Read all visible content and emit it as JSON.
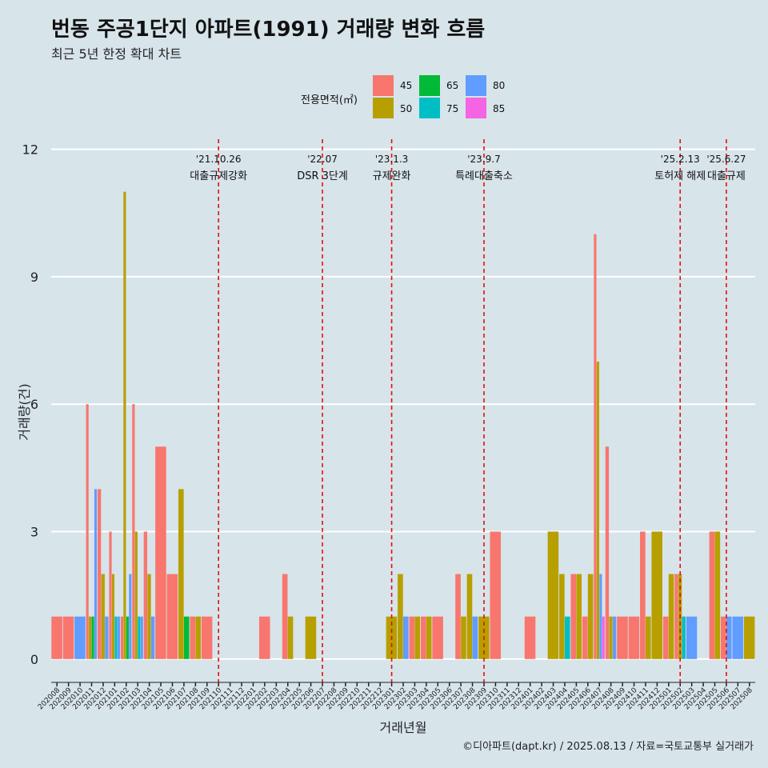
{
  "title": "번동 주공1단지 아파트(1991) 거래량 변화 흐름",
  "subtitle": "최근 5년 한정 확대 차트",
  "caption": "©디아파트(dapt.kr) / 2025.08.13 / 자료=국토교통부 실거래가",
  "colors": {
    "background": "#d7e4ea",
    "grid": "#ffffff",
    "vline": "#e01010"
  },
  "chart_data": {
    "type": "bar",
    "title": "번동 주공1단지 아파트(1991) 거래량 변화 흐름",
    "xlabel": "거래년월",
    "ylabel": "거래량(건)",
    "ylim": [
      -0.55,
      12.35
    ],
    "yticks": [
      0,
      3,
      6,
      9,
      12
    ],
    "legend": {
      "title": "전용면적(㎡)",
      "position": "top",
      "entries": [
        {
          "name": "45",
          "color": "#f8766d"
        },
        {
          "name": "50",
          "color": "#b79f00"
        },
        {
          "name": "65",
          "color": "#00ba38"
        },
        {
          "name": "75",
          "color": "#00bfc4"
        },
        {
          "name": "80",
          "color": "#619cff"
        },
        {
          "name": "85",
          "color": "#f564e3"
        }
      ]
    },
    "categories": [
      "202008",
      "202009",
      "202010",
      "202011",
      "202012",
      "202101",
      "202102",
      "202103",
      "202104",
      "202105",
      "202106",
      "202107",
      "202108",
      "202109",
      "202110",
      "202111",
      "202112",
      "202201",
      "202202",
      "202203",
      "202204",
      "202205",
      "202206",
      "202207",
      "202208",
      "202209",
      "202210",
      "202211",
      "202212",
      "202301",
      "202302",
      "202303",
      "202304",
      "202305",
      "202306",
      "202307",
      "202308",
      "202309",
      "202310",
      "202311",
      "202312",
      "202401",
      "202402",
      "202403",
      "202404",
      "202405",
      "202406",
      "202407",
      "202408",
      "202409",
      "202410",
      "202411",
      "202412",
      "202501",
      "202502",
      "202503",
      "202504",
      "202505",
      "202506",
      "202507",
      "202508"
    ],
    "series": [
      {
        "name": "45",
        "values": [
          1,
          1,
          0,
          6,
          4,
          3,
          1,
          6,
          3,
          5,
          2,
          0,
          1,
          1,
          0,
          0,
          0,
          0,
          1,
          0,
          2,
          0,
          0,
          0,
          0,
          0,
          0,
          0,
          0,
          0,
          0,
          1,
          1,
          1,
          0,
          2,
          0,
          0,
          3,
          0,
          0,
          1,
          0,
          0,
          0,
          2,
          1,
          10,
          5,
          1,
          1,
          3,
          0,
          1,
          2,
          0,
          0,
          3,
          1,
          0,
          0
        ]
      },
      {
        "name": "50",
        "values": [
          0,
          0,
          0,
          1,
          2,
          2,
          11,
          3,
          2,
          0,
          0,
          4,
          1,
          0,
          0,
          0,
          0,
          0,
          0,
          0,
          1,
          0,
          1,
          0,
          0,
          0,
          0,
          0,
          0,
          1,
          2,
          1,
          1,
          0,
          0,
          1,
          2,
          1,
          0,
          0,
          0,
          0,
          0,
          3,
          2,
          2,
          2,
          7,
          1,
          0,
          0,
          1,
          3,
          2,
          2,
          0,
          0,
          3,
          0,
          0,
          1
        ]
      },
      {
        "name": "65",
        "values": [
          0,
          0,
          0,
          1,
          0,
          0,
          1,
          0,
          0,
          0,
          0,
          1,
          0,
          0,
          0,
          0,
          0,
          0,
          0,
          0,
          0,
          0,
          0,
          0,
          0,
          0,
          0,
          0,
          0,
          0,
          0,
          0,
          0,
          0,
          0,
          0,
          0,
          0,
          0,
          0,
          0,
          0,
          0,
          0,
          0,
          0,
          0,
          0,
          0,
          0,
          0,
          0,
          0,
          0,
          0,
          0,
          0,
          0,
          0,
          0,
          0
        ]
      },
      {
        "name": "75",
        "values": [
          0,
          0,
          0,
          0,
          0,
          1,
          0,
          1,
          0,
          0,
          0,
          0,
          0,
          0,
          0,
          0,
          0,
          0,
          0,
          0,
          0,
          0,
          0,
          0,
          0,
          0,
          0,
          0,
          0,
          0,
          0,
          0,
          0,
          0,
          0,
          0,
          0,
          0,
          0,
          0,
          0,
          0,
          0,
          0,
          1,
          0,
          0,
          0,
          0,
          0,
          0,
          0,
          0,
          0,
          1,
          0,
          0,
          0,
          0,
          0,
          0
        ]
      },
      {
        "name": "80",
        "values": [
          0,
          0,
          1,
          4,
          1,
          1,
          2,
          1,
          1,
          0,
          0,
          0,
          0,
          0,
          0,
          0,
          0,
          0,
          0,
          0,
          0,
          0,
          0,
          0,
          0,
          0,
          0,
          0,
          0,
          0,
          1,
          0,
          0,
          0,
          0,
          0,
          1,
          0,
          0,
          0,
          0,
          0,
          0,
          0,
          0,
          0,
          0,
          2,
          1,
          0,
          0,
          0,
          0,
          0,
          0,
          1,
          0,
          0,
          1,
          1,
          0
        ]
      },
      {
        "name": "85",
        "values": [
          0,
          0,
          0,
          0,
          0,
          0,
          0,
          0,
          0,
          0,
          0,
          0,
          0,
          0,
          0,
          0,
          0,
          0,
          0,
          0,
          0,
          0,
          0,
          0,
          0,
          0,
          0,
          0,
          0,
          0,
          0,
          0,
          0,
          0,
          0,
          0,
          0,
          0,
          0,
          0,
          0,
          0,
          0,
          0,
          0,
          0,
          0,
          1,
          0,
          0,
          0,
          0,
          0,
          0,
          0,
          0,
          0,
          0,
          0,
          0,
          0
        ]
      }
    ],
    "annotations": [
      {
        "at": "202110",
        "date": "'21.10.26",
        "text": "대출규제강화"
      },
      {
        "at": "202207",
        "date": "'22.07",
        "text": "DSR 3단계"
      },
      {
        "at": "202301",
        "date": "'23.1.3",
        "text": "규제완화"
      },
      {
        "at": "202309",
        "date": "'23.9.7",
        "text": "특례대출축소"
      },
      {
        "at": "202502",
        "date": "'25.2.13",
        "text": "토허제 해제"
      },
      {
        "at": "202506",
        "date": "'25.6.27",
        "text": "대출규제"
      }
    ]
  }
}
